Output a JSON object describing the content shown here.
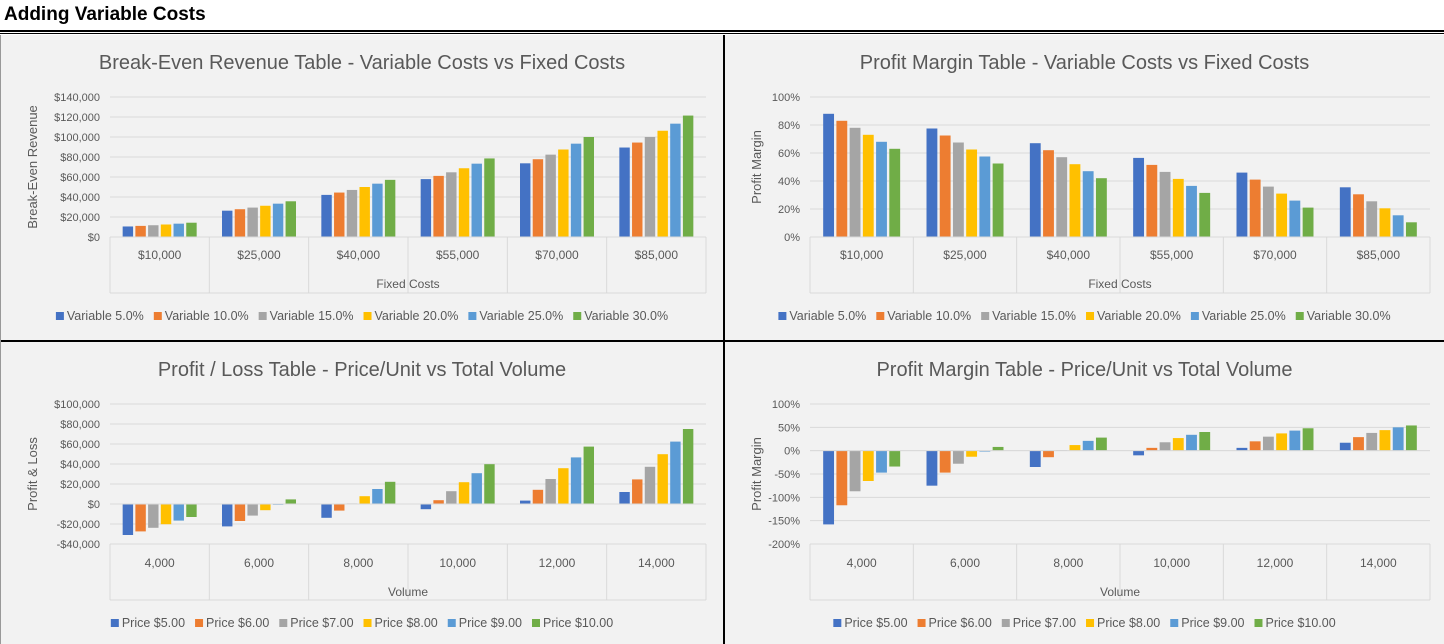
{
  "header": {
    "title": "Adding Variable Costs"
  },
  "colors": [
    "#4472C4",
    "#ED7D31",
    "#A5A5A5",
    "#FFC000",
    "#5B9BD5",
    "#70AD47"
  ],
  "chart_data": [
    {
      "type": "bar",
      "title": "Break-Even Revenue Table - Variable Costs vs Fixed Costs",
      "xlabel": "Fixed Costs",
      "ylabel": "Break-Even Revenue",
      "categories": [
        "$10,000",
        "$25,000",
        "$40,000",
        "$55,000",
        "$70,000",
        "$85,000"
      ],
      "ylim": [
        0,
        140000
      ],
      "yticks": [
        0,
        20000,
        40000,
        60000,
        80000,
        100000,
        120000,
        140000
      ],
      "ytick_labels": [
        "$0",
        "$20,000",
        "$40,000",
        "$60,000",
        "$80,000",
        "$100,000",
        "$120,000",
        "$140,000"
      ],
      "grid": true,
      "legend": "bottom",
      "series": [
        {
          "name": "Variable 5.0%",
          "values": [
            10526,
            26316,
            42105,
            57895,
            73684,
            89474
          ]
        },
        {
          "name": "Variable 10.0%",
          "values": [
            11111,
            27778,
            44444,
            61111,
            77778,
            94444
          ]
        },
        {
          "name": "Variable 15.0%",
          "values": [
            11765,
            29412,
            47059,
            64706,
            82353,
            100000
          ]
        },
        {
          "name": "Variable 20.0%",
          "values": [
            12500,
            31250,
            50000,
            68750,
            87500,
            106250
          ]
        },
        {
          "name": "Variable 25.0%",
          "values": [
            13333,
            33333,
            53333,
            73333,
            93333,
            113333
          ]
        },
        {
          "name": "Variable 30.0%",
          "values": [
            14286,
            35714,
            57143,
            78571,
            100000,
            121429
          ]
        }
      ]
    },
    {
      "type": "bar",
      "title": "Profit Margin Table - Variable Costs vs Fixed Costs",
      "xlabel": "Fixed Costs",
      "ylabel": "Profit Margin",
      "categories": [
        "$10,000",
        "$25,000",
        "$40,000",
        "$55,000",
        "$70,000",
        "$85,000"
      ],
      "ylim": [
        0,
        100
      ],
      "yticks": [
        0,
        20,
        40,
        60,
        80,
        100
      ],
      "ytick_labels": [
        "0%",
        "20%",
        "40%",
        "60%",
        "80%",
        "100%"
      ],
      "grid": true,
      "legend": "bottom",
      "series": [
        {
          "name": "Variable 5.0%",
          "values": [
            88,
            77.5,
            67,
            56.5,
            46,
            35.5
          ]
        },
        {
          "name": "Variable 10.0%",
          "values": [
            83,
            72.5,
            62,
            51.5,
            41,
            30.5
          ]
        },
        {
          "name": "Variable 15.0%",
          "values": [
            78,
            67.5,
            57,
            46.5,
            36,
            25.5
          ]
        },
        {
          "name": "Variable 20.0%",
          "values": [
            73,
            62.5,
            52,
            41.5,
            31,
            20.5
          ]
        },
        {
          "name": "Variable 25.0%",
          "values": [
            68,
            57.5,
            47,
            36.5,
            26,
            15.5
          ]
        },
        {
          "name": "Variable 30.0%",
          "values": [
            63,
            52.5,
            42,
            31.5,
            21,
            10.5
          ]
        }
      ]
    },
    {
      "type": "bar",
      "title": "Profit / Loss Table - Price/Unit vs Total Volume",
      "xlabel": "Volume",
      "ylabel": "Profit & Loss",
      "categories": [
        "4,000",
        "6,000",
        "8,000",
        "10,000",
        "12,000",
        "14,000"
      ],
      "ylim": [
        -40000,
        100000
      ],
      "yticks": [
        -40000,
        -20000,
        0,
        20000,
        40000,
        60000,
        80000,
        100000
      ],
      "ytick_labels": [
        "-$40,000",
        "-$20,000",
        "$0",
        "$20,000",
        "$40,000",
        "$60,000",
        "$80,000",
        "$100,000"
      ],
      "grid": true,
      "legend": "bottom",
      "series": [
        {
          "name": "Price $5.00",
          "values": [
            -31000,
            -22400,
            -13800,
            -5200,
            3400,
            12000
          ]
        },
        {
          "name": "Price $6.00",
          "values": [
            -27400,
            -17000,
            -6600,
            3800,
            14200,
            24600
          ]
        },
        {
          "name": "Price $7.00",
          "values": [
            -23800,
            -11600,
            600,
            12800,
            25000,
            37200
          ]
        },
        {
          "name": "Price $8.00",
          "values": [
            -20200,
            -6200,
            7800,
            21800,
            35800,
            49800
          ]
        },
        {
          "name": "Price $9.00",
          "values": [
            -16600,
            -800,
            15000,
            30800,
            46600,
            62400
          ]
        },
        {
          "name": "Price $10.00",
          "values": [
            -13000,
            4600,
            22200,
            39800,
            57400,
            75000
          ]
        }
      ]
    },
    {
      "type": "bar",
      "title": "Profit Margin Table - Price/Unit vs Total Volume",
      "xlabel": "Volume",
      "ylabel": "Profit Margin",
      "categories": [
        "4,000",
        "6,000",
        "8,000",
        "10,000",
        "12,000",
        "14,000"
      ],
      "ylim": [
        -200,
        100
      ],
      "yticks": [
        -200,
        -150,
        -100,
        -50,
        0,
        50,
        100
      ],
      "ytick_labels": [
        "-200%",
        "-150%",
        "-100%",
        "-50%",
        "0%",
        "50%",
        "100%"
      ],
      "grid": true,
      "legend": "bottom",
      "series": [
        {
          "name": "Price $5.00",
          "values": [
            -158,
            -75,
            -35,
            -10,
            6,
            17
          ]
        },
        {
          "name": "Price $6.00",
          "values": [
            -117,
            -47,
            -14,
            6,
            20,
            29
          ]
        },
        {
          "name": "Price $7.00",
          "values": [
            -87,
            -28,
            1,
            18,
            30,
            38
          ]
        },
        {
          "name": "Price $8.00",
          "values": [
            -65,
            -13,
            12,
            27,
            37,
            44
          ]
        },
        {
          "name": "Price $9.00",
          "values": [
            -47,
            -2,
            21,
            34,
            43,
            50
          ]
        },
        {
          "name": "Price $10.00",
          "values": [
            -34,
            8,
            28,
            40,
            48,
            54
          ]
        }
      ]
    }
  ]
}
